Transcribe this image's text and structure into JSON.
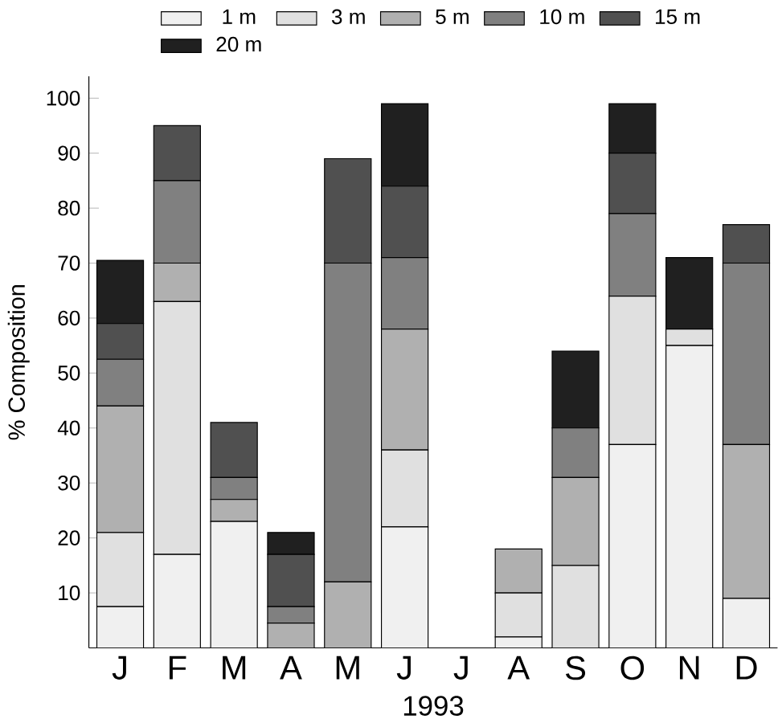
{
  "chart_data": {
    "type": "bar",
    "stacked": true,
    "xlabel": "1993",
    "ylabel": "% Composition",
    "categories": [
      "J",
      "F",
      "M",
      "A",
      "M",
      "J",
      "J",
      "A",
      "S",
      "O",
      "N",
      "D"
    ],
    "ylim": [
      0,
      104
    ],
    "yticks": [
      10,
      20,
      30,
      40,
      50,
      60,
      70,
      80,
      90,
      100
    ],
    "legend": "top",
    "grid": false,
    "series": [
      {
        "name": "1 m",
        "color": "#f0f0f0",
        "values": [
          7.5,
          17,
          23,
          0,
          0,
          22,
          0,
          2,
          0,
          37,
          55,
          9
        ]
      },
      {
        "name": "3 m",
        "color": "#e0e0e0",
        "values": [
          13.5,
          46,
          0,
          0,
          0,
          14,
          0,
          8,
          15,
          27,
          3,
          0
        ]
      },
      {
        "name": "5 m",
        "color": "#b0b0b0",
        "values": [
          23,
          7,
          4,
          4.5,
          12,
          22,
          0,
          8,
          16,
          0,
          0,
          28
        ]
      },
      {
        "name": "10 m",
        "color": "#808080",
        "values": [
          8.5,
          15,
          4,
          3,
          58,
          13,
          0,
          0,
          9,
          15,
          0,
          33
        ]
      },
      {
        "name": "15 m",
        "color": "#505050",
        "values": [
          6.5,
          10,
          10,
          9.5,
          19,
          13,
          0,
          0,
          0,
          11,
          0,
          7
        ]
      },
      {
        "name": "20 m",
        "color": "#202020",
        "values": [
          11.5,
          0,
          0,
          4,
          0,
          15,
          0,
          0,
          14,
          9,
          13,
          0
        ]
      }
    ]
  }
}
